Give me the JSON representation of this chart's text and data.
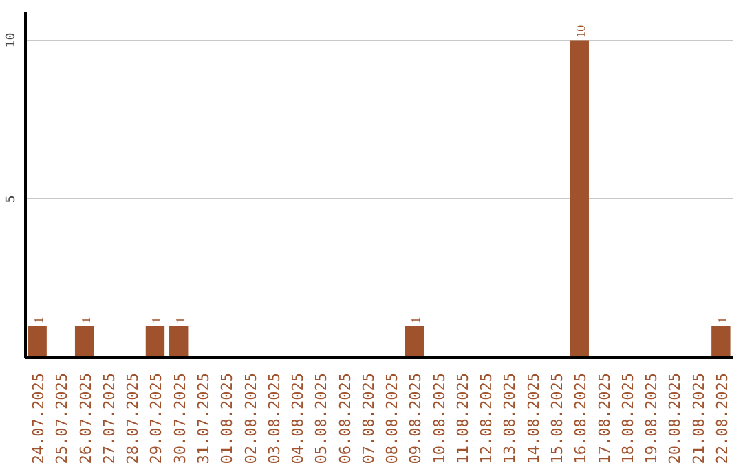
{
  "chart_data": {
    "type": "bar",
    "categories": [
      "24.07.2025",
      "25.07.2025",
      "26.07.2025",
      "27.07.2025",
      "28.07.2025",
      "29.07.2025",
      "30.07.2025",
      "31.07.2025",
      "01.08.2025",
      "02.08.2025",
      "03.08.2025",
      "04.08.2025",
      "05.08.2025",
      "06.08.2025",
      "07.08.2025",
      "08.08.2025",
      "09.08.2025",
      "10.08.2025",
      "11.08.2025",
      "12.08.2025",
      "13.08.2025",
      "14.08.2025",
      "15.08.2025",
      "16.08.2025",
      "17.08.2025",
      "18.08.2025",
      "19.08.2025",
      "20.08.2025",
      "21.08.2025",
      "22.08.2025"
    ],
    "values": [
      1,
      0,
      1,
      0,
      0,
      1,
      1,
      0,
      0,
      0,
      0,
      0,
      0,
      0,
      0,
      0,
      1,
      0,
      0,
      0,
      0,
      0,
      0,
      10,
      0,
      0,
      0,
      0,
      0,
      1
    ],
    "value_labels": [
      "1",
      null,
      "1",
      null,
      null,
      "1",
      "1",
      null,
      null,
      null,
      null,
      null,
      null,
      null,
      null,
      null,
      "1",
      null,
      null,
      null,
      null,
      null,
      null,
      "10",
      null,
      null,
      null,
      null,
      null,
      "1"
    ],
    "color": "#a0522d",
    "ylim": [
      0,
      10.9
    ],
    "yticks": [
      {
        "value": 0,
        "label": null
      },
      5,
      10
    ],
    "grid": "y"
  }
}
